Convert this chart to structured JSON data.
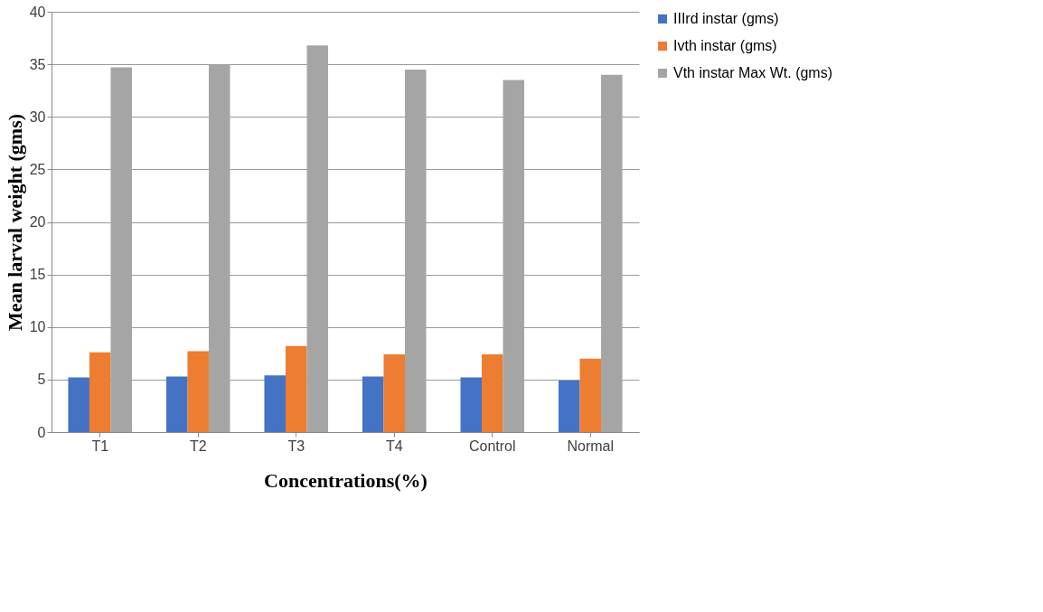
{
  "chart_data": {
    "type": "bar",
    "xlabel": "Concentrations(%)",
    "ylabel": "Mean larval weight (gms)",
    "categories": [
      "T1",
      "T2",
      "T3",
      "T4",
      "Control",
      "Normal"
    ],
    "series": [
      {
        "name": "IIIrd instar (gms)",
        "color": "#4472c4",
        "values": [
          5.2,
          5.3,
          5.4,
          5.3,
          5.2,
          4.9
        ]
      },
      {
        "name": "Ivth instar (gms)",
        "color": "#ed7d31",
        "values": [
          7.6,
          7.7,
          8.2,
          7.4,
          7.4,
          7.0
        ]
      },
      {
        "name": "Vth instar Max Wt. (gms)",
        "color": "#a5a5a5",
        "values": [
          34.7,
          35.0,
          36.8,
          34.5,
          33.5,
          34.0
        ]
      }
    ],
    "ylim": [
      0,
      40
    ],
    "yticks": [
      0,
      5,
      10,
      15,
      20,
      25,
      30,
      35,
      40
    ],
    "grid": "y",
    "legend": "right"
  }
}
